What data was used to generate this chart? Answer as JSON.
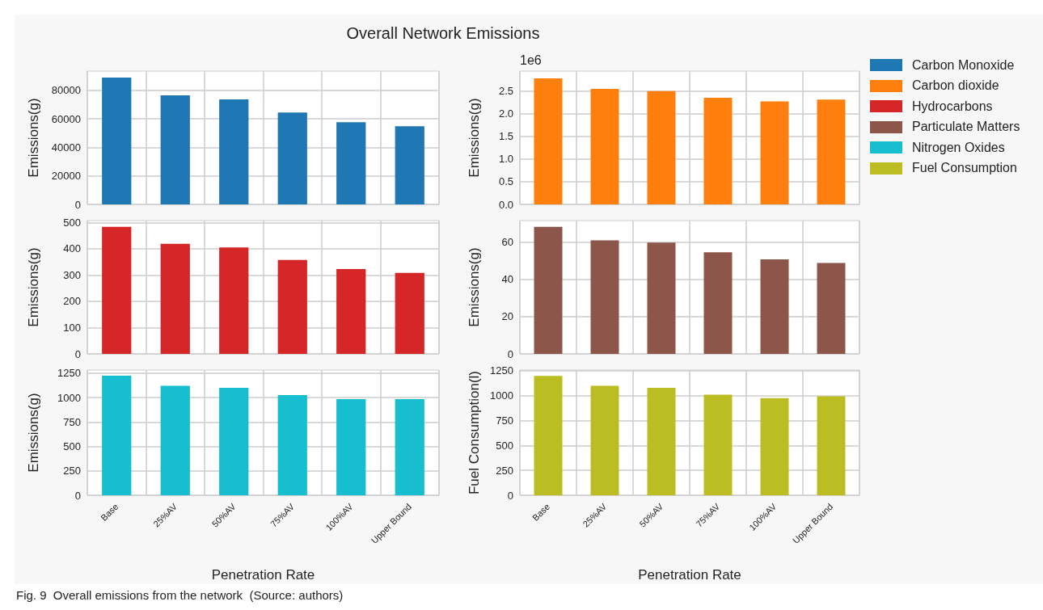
{
  "chart_data": [
    {
      "type": "bar",
      "title": "Overall Network Emissions",
      "categories": [
        null,
        null,
        null,
        null,
        null,
        null
      ],
      "ylabel": "Emissions(g)",
      "ylim": [
        0,
        93500
      ],
      "yticks": [
        0,
        20000,
        40000,
        60000,
        80000
      ],
      "grid": true,
      "legend": "right",
      "tick_labels": "y",
      "annotations": [
        "Fig. 9  Overall emissions from the network  (Source: authors)"
      ],
      "series": [
        {
          "name": "Carbon Monoxide",
          "color": "#1f77b4",
          "values": [
            89000,
            76500,
            73600,
            64400,
            57700,
            54800
          ]
        }
      ]
    },
    {
      "type": "bar",
      "categories": [
        null,
        null,
        null,
        null,
        null,
        null
      ],
      "ylabel": "Emissions(g)",
      "ylim": [
        0,
        2.94
      ],
      "yticks": [
        {
          "value": 0,
          "label": "0.0"
        },
        {
          "value": 0.5,
          "label": "0.5"
        },
        {
          "value": 1,
          "label": "1.0"
        },
        {
          "value": 1.5,
          "label": "1.5"
        },
        {
          "value": 2,
          "label": "2.0"
        },
        {
          "value": 2.5,
          "label": "2.5"
        }
      ],
      "grid": true,
      "legend": "right",
      "tick_labels": "y",
      "annotations": [
        "1e6"
      ],
      "series": [
        {
          "name": "Carbon dioxide",
          "color": "#ff7f0e",
          "values": [
            2.78,
            2.55,
            2.5,
            2.35,
            2.27,
            2.31
          ]
        }
      ]
    },
    {
      "type": "bar",
      "categories": [
        null,
        null,
        null,
        null,
        null,
        null
      ],
      "ylabel": "Emissions(g)",
      "ylim": [
        0,
        507
      ],
      "yticks": [
        0,
        100,
        200,
        300,
        400,
        500
      ],
      "grid": true,
      "legend": "right",
      "tick_labels": "y",
      "series": [
        {
          "name": "Hydrocarbons",
          "color": "#d62728",
          "values": [
            483,
            419,
            405,
            357,
            323,
            308
          ]
        }
      ]
    },
    {
      "type": "bar",
      "categories": [
        null,
        null,
        null,
        null,
        null,
        null
      ],
      "ylabel": "Emissions(g)",
      "ylim": [
        0,
        71.5
      ],
      "yticks": [
        0,
        20,
        40,
        60
      ],
      "grid": true,
      "legend": "right",
      "tick_labels": "y",
      "series": [
        {
          "name": "Particulate Matters",
          "color": "#8c564b",
          "values": [
            68.1,
            60.9,
            59.7,
            54.5,
            50.7,
            48.8
          ]
        }
      ]
    },
    {
      "type": "bar",
      "categories": [
        "Base",
        "25%AV",
        "50%AV",
        "75%AV",
        "100%AV",
        "Upper Bound"
      ],
      "xlabel": "Penetration Rate",
      "ylabel": "Emissions(g)",
      "ylim": [
        0,
        1282
      ],
      "yticks": [
        0,
        250,
        500,
        750,
        1000,
        1250
      ],
      "grid": true,
      "legend": "right",
      "series": [
        {
          "name": "Nitrogen Oxides",
          "color": "#17becf",
          "values": [
            1225,
            1120,
            1100,
            1025,
            985,
            985
          ]
        }
      ]
    },
    {
      "type": "bar",
      "categories": [
        "Base",
        "25%AV",
        "50%AV",
        "75%AV",
        "100%AV",
        "Upper Bound"
      ],
      "xlabel": "Penetration Rate",
      "ylabel": "Fuel Consumption(l)",
      "ylim": [
        0,
        1258
      ],
      "yticks": [
        0,
        250,
        500,
        750,
        1000,
        1250
      ],
      "grid": true,
      "legend": "right",
      "series": [
        {
          "name": "Fuel Consumption",
          "color": "#bcbd22",
          "values": [
            1200,
            1100,
            1080,
            1010,
            975,
            995
          ]
        }
      ]
    }
  ]
}
